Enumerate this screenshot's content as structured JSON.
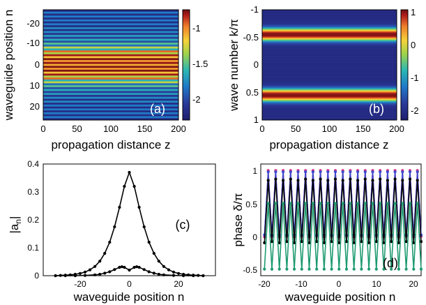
{
  "panels": {
    "a": {
      "label": "(a)",
      "xlabel": "propagation distance z",
      "ylabel": "waveguide position n",
      "xticks": [
        "0",
        "50",
        "100",
        "150",
        "200"
      ],
      "yticks": [
        "-20",
        "-10",
        "0",
        "10",
        "20"
      ],
      "cbar_ticks": [
        "-1",
        "-1.5",
        "-2"
      ]
    },
    "b": {
      "label": "(b)",
      "xlabel": "propagation distance z",
      "ylabel": "wave number k/π",
      "xticks": [
        "0",
        "50",
        "100",
        "150",
        "200"
      ],
      "yticks": [
        "-1",
        "-0.5",
        "0",
        "0.5",
        "1"
      ],
      "cbar_ticks": [
        "1",
        "0",
        "-1",
        "-2"
      ]
    },
    "c": {
      "label": "(c)",
      "xlabel": "waveguide position n",
      "ylabel_main": "|a",
      "ylabel_sub": "n",
      "ylabel_end": "|",
      "xticks": [
        "-20",
        "0",
        "20"
      ],
      "yticks": [
        "0",
        "0.1",
        "0.2",
        "0.3",
        "0.4"
      ]
    },
    "d": {
      "label": "(d)",
      "xlabel": "waveguide position n",
      "ylabel": "phase δ/π",
      "xticks": [
        "-20",
        "-10",
        "0",
        "10",
        "20"
      ],
      "yticks": [
        "-0.5",
        "0",
        "0.5",
        "1"
      ]
    }
  },
  "colors": {
    "colormap": [
      "#1e1e6e",
      "#2a3a9a",
      "#1f78c8",
      "#2bb7b4",
      "#9fd34a",
      "#f5d23a",
      "#f07f2a",
      "#b01c1c",
      "#6e1010"
    ],
    "black": "#000000",
    "magenta": "#d02a8a",
    "blue": "#3a4acc",
    "green": "#1e9a70"
  },
  "chart_data": [
    {
      "id": "a",
      "type": "heatmap",
      "x_range": [
        0,
        200
      ],
      "y_range": [
        -28,
        28
      ],
      "y_inverted": true,
      "color_range": [
        -2.3,
        -0.75
      ],
      "rows_description": "log10 intensity per waveguide, constant along z",
      "rows": [
        [
          -28,
          -2.2
        ],
        [
          -27,
          -1.9
        ],
        [
          -26,
          -2.2
        ],
        [
          -25,
          -1.9
        ],
        [
          -24,
          -2.2
        ],
        [
          -23,
          -1.9
        ],
        [
          -22,
          -2.2
        ],
        [
          -21,
          -1.9
        ],
        [
          -20,
          -2.2
        ],
        [
          -19,
          -1.85
        ],
        [
          -18,
          -2.2
        ],
        [
          -17,
          -1.85
        ],
        [
          -16,
          -2.15
        ],
        [
          -15,
          -1.8
        ],
        [
          -14,
          -2.1
        ],
        [
          -13,
          -1.75
        ],
        [
          -12,
          -2.05
        ],
        [
          -11,
          -1.65
        ],
        [
          -10,
          -1.95
        ],
        [
          -9,
          -1.45
        ],
        [
          -8,
          -1.75
        ],
        [
          -7,
          -1.1
        ],
        [
          -6,
          -1.5
        ],
        [
          -5,
          -0.9
        ],
        [
          -4,
          -1.3
        ],
        [
          -3,
          -0.8
        ],
        [
          -2,
          -1.2
        ],
        [
          -1,
          -0.85
        ],
        [
          0,
          -1.25
        ],
        [
          1,
          -0.8
        ],
        [
          2,
          -1.2
        ],
        [
          3,
          -0.8
        ],
        [
          4,
          -1.3
        ],
        [
          5,
          -0.9
        ],
        [
          6,
          -1.5
        ],
        [
          7,
          -1.1
        ],
        [
          8,
          -1.75
        ],
        [
          9,
          -1.45
        ],
        [
          10,
          -1.95
        ],
        [
          11,
          -1.65
        ],
        [
          12,
          -2.05
        ],
        [
          13,
          -1.75
        ],
        [
          14,
          -2.1
        ],
        [
          15,
          -1.8
        ],
        [
          16,
          -2.15
        ],
        [
          17,
          -1.85
        ],
        [
          18,
          -2.2
        ],
        [
          19,
          -1.85
        ],
        [
          20,
          -2.2
        ],
        [
          21,
          -1.9
        ],
        [
          22,
          -2.2
        ],
        [
          23,
          -1.9
        ],
        [
          24,
          -2.2
        ],
        [
          25,
          -1.9
        ],
        [
          26,
          -2.2
        ],
        [
          27,
          -1.9
        ],
        [
          28,
          -2.2
        ]
      ]
    },
    {
      "id": "b",
      "type": "heatmap",
      "x_range": [
        0,
        200
      ],
      "y_range": [
        -1,
        1
      ],
      "y_inverted": true,
      "color_range": [
        -2.3,
        1.1
      ],
      "background": -2.1,
      "bands": [
        {
          "center": -0.55,
          "width": 0.16,
          "peak": 1.0
        },
        {
          "center": 0.55,
          "width": 0.16,
          "peak": 1.0
        }
      ]
    },
    {
      "id": "c",
      "type": "line",
      "x_range": [
        -35,
        35
      ],
      "y_range": [
        0,
        0.4
      ],
      "series": [
        {
          "color": "#000000",
          "x": [
            -30,
            -28,
            -26,
            -24,
            -22,
            -20,
            -18,
            -16,
            -14,
            -12,
            -10,
            -8,
            -6,
            -4,
            -2,
            0,
            2,
            4,
            6,
            8,
            10,
            12,
            14,
            16,
            18,
            20,
            22,
            24,
            26,
            28,
            30
          ],
          "y": [
            0.0,
            0.001,
            0.002,
            0.003,
            0.005,
            0.008,
            0.013,
            0.021,
            0.033,
            0.052,
            0.08,
            0.12,
            0.175,
            0.245,
            0.32,
            0.37,
            0.32,
            0.245,
            0.175,
            0.12,
            0.08,
            0.052,
            0.033,
            0.021,
            0.013,
            0.008,
            0.005,
            0.003,
            0.002,
            0.001,
            0.0
          ]
        },
        {
          "color": "#000000",
          "x": [
            -30,
            -26,
            -22,
            -18,
            -14,
            -12,
            -10,
            -8,
            -6,
            -4,
            -3,
            -2,
            0,
            2,
            3,
            4,
            6,
            8,
            10,
            12,
            14,
            18,
            22,
            26,
            30
          ],
          "y": [
            0.0,
            0.0,
            0.0,
            0.001,
            0.003,
            0.005,
            0.009,
            0.014,
            0.022,
            0.03,
            0.032,
            0.03,
            0.02,
            0.03,
            0.032,
            0.03,
            0.022,
            0.014,
            0.009,
            0.005,
            0.003,
            0.001,
            0.0,
            0.0,
            0.0
          ]
        }
      ]
    },
    {
      "id": "d",
      "type": "line",
      "x_range": [
        -21,
        22
      ],
      "y_range": [
        -0.6,
        1.1
      ],
      "series": [
        {
          "color": "#d02a8a",
          "x": [
            -20,
            -19,
            -18,
            -17,
            -16,
            -15,
            -14,
            -13,
            -12,
            -11,
            -10,
            -9,
            -8,
            -7,
            -6,
            -5,
            -4,
            -3,
            -2,
            -1,
            0,
            1,
            2,
            3,
            4,
            5,
            6,
            7,
            8,
            9,
            10,
            11,
            12,
            13,
            14,
            15,
            16,
            17,
            18,
            19,
            20,
            21,
            22
          ],
          "y": [
            -0.01,
            1.0,
            0.0,
            1.0,
            -0.01,
            1.0,
            0.0,
            1.0,
            -0.01,
            1.0,
            0.0,
            1.0,
            -0.01,
            1.0,
            0.0,
            1.0,
            -0.01,
            1.0,
            0.0,
            1.0,
            -0.01,
            1.0,
            0.0,
            1.0,
            -0.01,
            1.0,
            0.0,
            1.0,
            -0.01,
            1.0,
            0.0,
            1.0,
            -0.01,
            1.0,
            0.0,
            1.0,
            -0.01,
            1.0,
            0.0,
            1.0,
            -0.01,
            1.0,
            0.0
          ]
        },
        {
          "color": "#3a4acc",
          "x": [
            -20,
            -19,
            -18,
            -17,
            -16,
            -15,
            -14,
            -13,
            -12,
            -11,
            -10,
            -9,
            -8,
            -7,
            -6,
            -5,
            -4,
            -3,
            -2,
            -1,
            0,
            1,
            2,
            3,
            4,
            5,
            6,
            7,
            8,
            9,
            10,
            11,
            12,
            13,
            14,
            15,
            16,
            17,
            18,
            19,
            20,
            21,
            22
          ],
          "y": [
            0.02,
            0.98,
            0.02,
            0.98,
            0.02,
            0.98,
            0.02,
            0.98,
            0.02,
            0.98,
            0.02,
            0.98,
            0.02,
            0.98,
            0.02,
            0.98,
            0.02,
            0.98,
            0.02,
            0.98,
            0.02,
            0.98,
            0.02,
            0.98,
            0.02,
            0.98,
            0.02,
            0.98,
            0.02,
            0.98,
            0.02,
            0.98,
            0.02,
            0.98,
            0.02,
            0.98,
            0.02,
            0.98,
            0.02,
            0.98,
            0.02,
            0.98,
            0.02
          ]
        },
        {
          "color": "#000000",
          "x": [
            -20,
            -19,
            -18,
            -17,
            -16,
            -15,
            -14,
            -13,
            -12,
            -11,
            -10,
            -9,
            -8,
            -7,
            -6,
            -5,
            -4,
            -3,
            -2,
            -1,
            0,
            1,
            2,
            3,
            4,
            5,
            6,
            7,
            8,
            9,
            10,
            11,
            12,
            13,
            14,
            15,
            16,
            17,
            18,
            19,
            20,
            21,
            22
          ],
          "y": [
            -0.1,
            0.85,
            -0.08,
            0.87,
            -0.1,
            0.85,
            -0.08,
            0.87,
            -0.1,
            0.85,
            -0.08,
            0.87,
            -0.1,
            0.85,
            -0.08,
            0.87,
            -0.1,
            0.85,
            -0.08,
            0.87,
            -0.1,
            0.85,
            -0.08,
            0.87,
            -0.1,
            0.85,
            -0.08,
            0.87,
            -0.1,
            0.85,
            -0.08,
            0.87,
            -0.1,
            0.85,
            -0.08,
            0.87,
            -0.1,
            0.85,
            -0.08,
            0.87,
            -0.1,
            0.85,
            -0.08
          ]
        },
        {
          "color": "#1e9a70",
          "x": [
            -20,
            -19,
            -18,
            -17,
            -16,
            -15,
            -14,
            -13,
            -12,
            -11,
            -10,
            -9,
            -8,
            -7,
            -6,
            -5,
            -4,
            -3,
            -2,
            -1,
            0,
            1,
            2,
            3,
            4,
            5,
            6,
            7,
            8,
            9,
            10,
            11,
            12,
            13,
            14,
            15,
            16,
            17,
            18,
            19,
            20,
            21,
            22
          ],
          "y": [
            -0.5,
            0.5,
            -0.5,
            0.5,
            -0.5,
            0.5,
            -0.5,
            0.5,
            -0.5,
            0.5,
            -0.5,
            0.5,
            -0.5,
            0.5,
            -0.5,
            0.5,
            -0.5,
            0.5,
            -0.5,
            0.5,
            -0.5,
            0.5,
            -0.5,
            0.5,
            -0.5,
            0.5,
            -0.5,
            0.5,
            -0.5,
            0.5,
            -0.5,
            0.5,
            -0.5,
            0.5,
            -0.5,
            0.5,
            -0.5,
            0.5,
            -0.5,
            0.5,
            -0.5,
            0.5,
            -0.5
          ]
        }
      ]
    }
  ]
}
